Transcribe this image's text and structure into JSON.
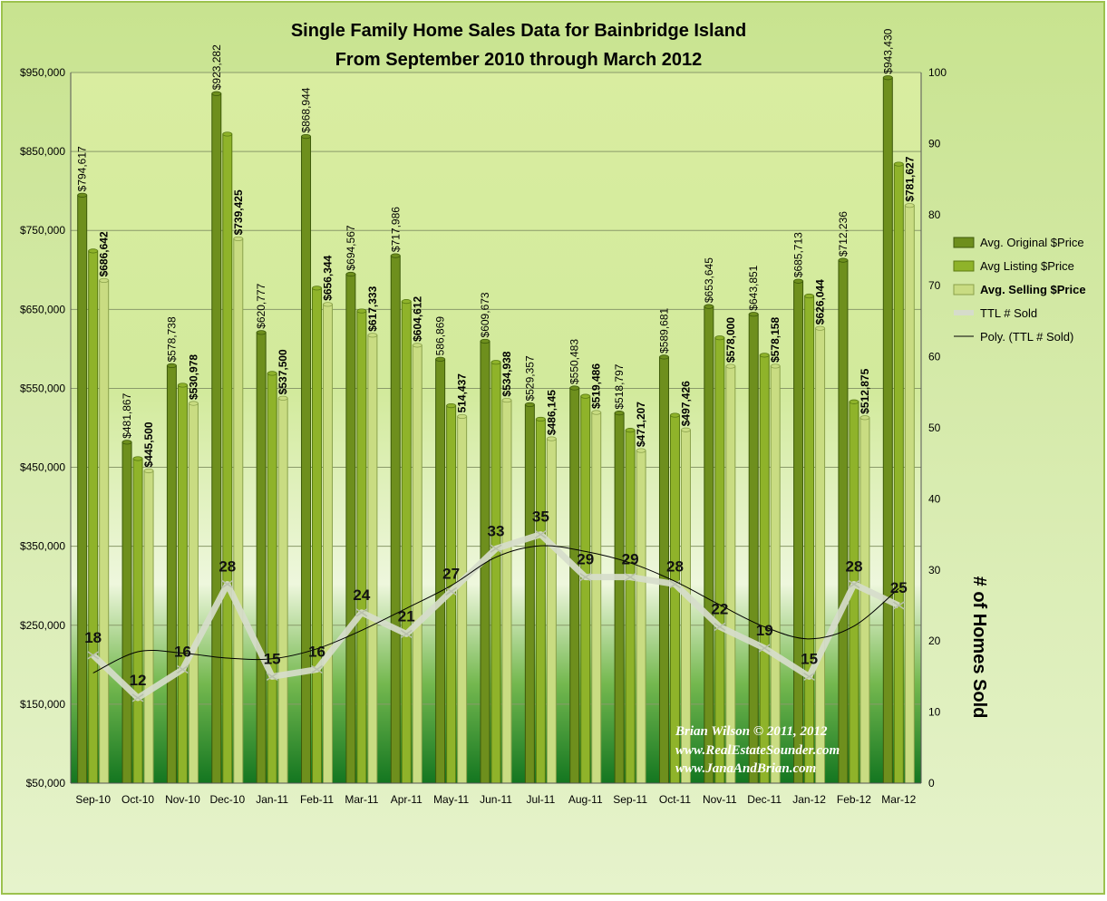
{
  "chart_data": {
    "type": "bar",
    "title": "Single Family Home Sales Data for Bainbridge Island",
    "subtitle": "From September 2010 through March 2012",
    "categories": [
      "Sep-10",
      "Oct-10",
      "Nov-10",
      "Dec-10",
      "Jan-11",
      "Feb-11",
      "Mar-11",
      "Apr-11",
      "May-11",
      "Jun-11",
      "Jul-11",
      "Aug-11",
      "Sep-11",
      "Oct-11",
      "Nov-11",
      "Dec-11",
      "Jan-12",
      "Feb-12",
      "Mar-12"
    ],
    "series": [
      {
        "name": "Avg. Original $Price",
        "color": "#6e8f1d",
        "values": [
          794617,
          481867,
          578738,
          923282,
          620777,
          868944,
          694567,
          717986,
          586869,
          609673,
          529357,
          550483,
          518797,
          589681,
          653645,
          643851,
          685713,
          712236,
          943430
        ]
      },
      {
        "name": "Avg Listing $Price",
        "color": "#8fb32a",
        "values": [
          724000,
          461000,
          554000,
          872000,
          569000,
          677000,
          648000,
          660000,
          528000,
          583000,
          511000,
          540000,
          497000,
          516000,
          614000,
          592000,
          667000,
          533000,
          834000
        ]
      },
      {
        "name": "Avg. Selling $Price",
        "color": "#c9dc82",
        "values": [
          686642,
          445500,
          530978,
          739425,
          537500,
          656344,
          617333,
          604612,
          514437,
          534938,
          486145,
          519486,
          471207,
          497426,
          578000,
          578158,
          626044,
          512875,
          781627
        ]
      }
    ],
    "labels_original": [
      "$794,617",
      "$481,867",
      "$578,738",
      "$923,282",
      "$620,777",
      "$868,944",
      "$694,567",
      "$717,986",
      "586,869",
      "$609,673",
      "$529,357",
      "$550,483",
      "$518,797",
      "$589,681",
      "$653,645",
      "$643,851",
      "$685,713",
      "$712,236",
      "$943,430"
    ],
    "labels_selling": [
      "$686,642",
      "$445,500",
      "$530,978",
      "$739,425",
      "$537,500",
      "$656,344",
      "$617,333",
      "$604,612",
      "514,437",
      "$534,938",
      "$486,145",
      "$519,486",
      "$471,207",
      "$497,426",
      "$578,000",
      "$578,158",
      "$626,044",
      "$512,875",
      "$781,627"
    ],
    "line_series": {
      "name": "TTL # Sold",
      "color": "#d6dccb",
      "values": [
        18,
        12,
        16,
        28,
        15,
        16,
        24,
        21,
        27,
        33,
        35,
        29,
        29,
        28,
        22,
        19,
        15,
        28,
        25
      ]
    },
    "trend_series": {
      "name": "Poly. (TTL # Sold)",
      "color": "#000000",
      "values": [
        15.5,
        18.5,
        18.3,
        17.6,
        17.5,
        18.9,
        21.5,
        24.6,
        27.8,
        31.8,
        33.4,
        32.6,
        31.0,
        28.4,
        25.1,
        22.0,
        20.3,
        22.1,
        27.4
      ]
    },
    "y_left": {
      "ticks": [
        "$50,000",
        "$150,000",
        "$250,000",
        "$350,000",
        "$450,000",
        "$550,000",
        "$650,000",
        "$750,000",
        "$850,000",
        "$950,000"
      ],
      "range": [
        50000,
        950000
      ]
    },
    "y_right": {
      "label": "# of Homes Sold",
      "ticks": [
        "0",
        "10",
        "20",
        "30",
        "40",
        "50",
        "60",
        "70",
        "80",
        "90",
        "100"
      ],
      "range": [
        0,
        100
      ]
    },
    "grid": true,
    "legend_position": "right"
  },
  "credits": {
    "line1": "Brian Wilson  © 2011, 2012",
    "line2": "www.RealEstateSounder.com",
    "line3": "www.JanaAndBrian.com"
  },
  "colors": {
    "frame_bg": "#d7ebb1",
    "frame_border": "#9cc24e",
    "plot_top": "#d8ec9f",
    "plot_bottom": "#1a7a22"
  }
}
